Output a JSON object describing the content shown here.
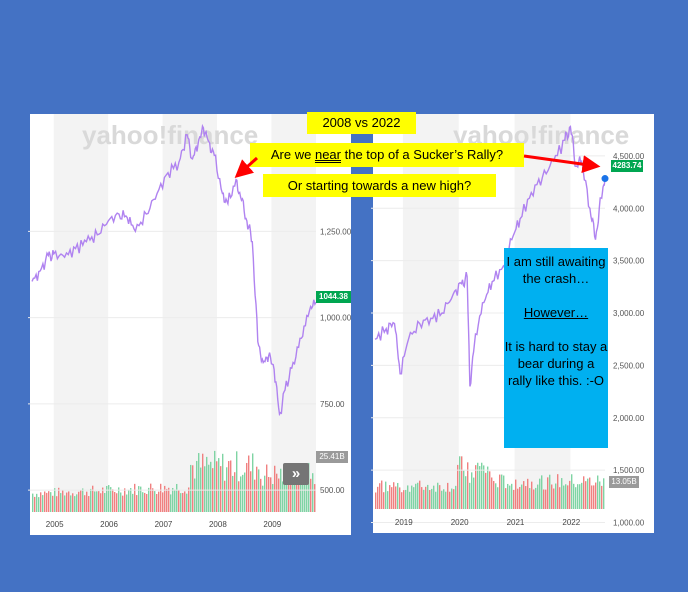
{
  "title": "2008 vs 2022",
  "question_prefix": "Are we ",
  "question_underlined": "near",
  "question_suffix": " the top of a Sucker’s Rally?",
  "question2": "Or starting towards a new high?",
  "watermark": "yahoo!finance",
  "note": {
    "line1": "I am still awaiting the crash…",
    "line2": "However…",
    "line3": "It is hard to stay a bear during a rally like this. :-O"
  },
  "colors": {
    "background": "#4472c4",
    "price_line": "#b083f0",
    "price_badge": "#00a651",
    "volume_up": "#7fd4a4",
    "volume_down": "#f08080",
    "arrow": "#ff0000",
    "note_bg": "#00b0f0",
    "label_bg": "#ffff00"
  },
  "chevron_icon": "double-chevron-right-icon",
  "chart_data": [
    {
      "type": "line",
      "y_ticks": [
        "500.00",
        "750.00",
        "1,000.00",
        "1,250.00"
      ],
      "y_tick_values": [
        500,
        750,
        1000,
        1250
      ],
      "x_ticks": [
        "2005",
        "2006",
        "2007",
        "2008",
        "2009"
      ],
      "ylim": [
        370,
        1590
      ],
      "last_price": "1044.38",
      "volume_label": "25.41B",
      "price_series": {
        "x": [
          2004.6,
          2004.75,
          2004.9,
          2005.0,
          2005.2,
          2005.4,
          2005.6,
          2005.8,
          2006.0,
          2006.2,
          2006.35,
          2006.5,
          2006.7,
          2006.9,
          2007.1,
          2007.3,
          2007.45,
          2007.55,
          2007.65,
          2007.75,
          2007.85,
          2007.95,
          2008.1,
          2008.2,
          2008.35,
          2008.45,
          2008.55,
          2008.65,
          2008.75,
          2008.85,
          2008.95,
          2009.05,
          2009.15,
          2009.25,
          2009.4,
          2009.55,
          2009.7,
          2009.82
        ],
        "y": [
          1105,
          1135,
          1180,
          1185,
          1175,
          1200,
          1220,
          1240,
          1280,
          1300,
          1290,
          1250,
          1300,
          1360,
          1420,
          1450,
          1530,
          1460,
          1500,
          1550,
          1510,
          1470,
          1360,
          1330,
          1400,
          1340,
          1280,
          1220,
          930,
          870,
          890,
          850,
          720,
          790,
          870,
          940,
          1020,
          1044.38
        ]
      }
    },
    {
      "type": "line",
      "y_ticks": [
        "1,000.00",
        "1,500.00",
        "2,000.00",
        "2,500.00",
        "3,000.00",
        "3,500.00",
        "4,000.00",
        "4,500.00"
      ],
      "y_tick_values": [
        1000,
        1500,
        2000,
        2500,
        3000,
        3500,
        4000,
        4500
      ],
      "x_ticks": [
        "2019",
        "2020",
        "2021",
        "2022"
      ],
      "ylim": [
        900,
        4900
      ],
      "last_price": "4283.74",
      "volume_label": "13.05B",
      "price_series": {
        "x": [
          2018.5,
          2018.7,
          2018.85,
          2018.95,
          2019.1,
          2019.3,
          2019.5,
          2019.7,
          2019.9,
          2020.05,
          2020.15,
          2020.2,
          2020.3,
          2020.45,
          2020.6,
          2020.8,
          2020.95,
          2021.1,
          2021.3,
          2021.5,
          2021.7,
          2021.9,
          2022.0,
          2022.1,
          2022.2,
          2022.35,
          2022.45,
          2022.55,
          2022.62
        ],
        "y": [
          2750,
          2850,
          2900,
          2420,
          2750,
          2900,
          2950,
          3000,
          3180,
          3280,
          3350,
          2300,
          2800,
          3100,
          3300,
          3450,
          3700,
          3900,
          4150,
          4300,
          4450,
          4650,
          4780,
          4400,
          4450,
          4000,
          3700,
          4100,
          4283.74
        ]
      }
    }
  ]
}
